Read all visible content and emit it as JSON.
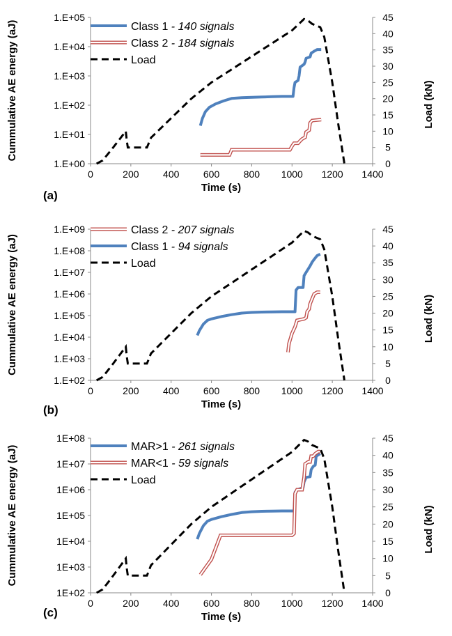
{
  "colors": {
    "blue": "#4f81bd",
    "red": "#c0504d",
    "load": "#000000"
  },
  "chart_data": [
    {
      "type": "line",
      "panel_label": "(a)",
      "xlabel": "Time (s)",
      "ylabel": "Cummulative AE energy (aJ)",
      "y2label": "Load (kN)",
      "xlim": [
        0,
        1400
      ],
      "xticks": [
        "0",
        "200",
        "400",
        "600",
        "800",
        "1000",
        "1200",
        "1400"
      ],
      "ylim": [
        1,
        100000
      ],
      "yscale": "log",
      "yticks": [
        "1.E+00",
        "1.E+01",
        "1.E+02",
        "1.E+03",
        "1.E+04",
        "1.E+05"
      ],
      "y2lim": [
        0,
        45
      ],
      "y2ticks": [
        "0",
        "5",
        "10",
        "15",
        "20",
        "25",
        "30",
        "35",
        "40",
        "45"
      ],
      "legend": [
        {
          "name": "Class 1",
          "note": " - 140 signals",
          "style": "blue"
        },
        {
          "name": "Class 2",
          "note": " - 184 signals",
          "style": "red"
        },
        {
          "name": "Load",
          "note": "",
          "style": "load"
        }
      ],
      "series": [
        {
          "name": "Class 1",
          "style": "blue",
          "axis": "left",
          "x": [
            545,
            555,
            570,
            590,
            620,
            660,
            700,
            750,
            800,
            850,
            900,
            950,
            1005,
            1010,
            1015,
            1030,
            1035,
            1040,
            1060,
            1065,
            1070,
            1090,
            1095,
            1110,
            1125,
            1145
          ],
          "y": [
            20,
            35,
            60,
            85,
            110,
            140,
            170,
            180,
            185,
            190,
            195,
            200,
            200,
            400,
            600,
            700,
            1000,
            2000,
            2500,
            3000,
            4000,
            4500,
            6000,
            7000,
            8000,
            8000
          ]
        },
        {
          "name": "Class 2",
          "style": "red",
          "axis": "left",
          "x": [
            545,
            690,
            700,
            990,
            1000,
            1010,
            1030,
            1040,
            1050,
            1065,
            1070,
            1085,
            1090,
            1100,
            1145
          ],
          "y": [
            2,
            2,
            3,
            3,
            4,
            5,
            5,
            6,
            7,
            8,
            12,
            14,
            25,
            30,
            32
          ]
        },
        {
          "name": "Load",
          "style": "load",
          "axis": "right",
          "x": [
            30,
            60,
            100,
            150,
            175,
            180,
            185,
            280,
            300,
            400,
            500,
            600,
            700,
            800,
            900,
            1000,
            1060,
            1080,
            1100,
            1140,
            1160,
            1200,
            1230,
            1260
          ],
          "y": [
            0,
            1,
            4,
            8,
            10,
            7,
            5,
            5,
            8,
            14,
            20,
            25,
            29,
            33,
            37,
            41,
            44.5,
            44,
            43,
            42,
            39,
            25,
            12,
            0
          ]
        }
      ]
    },
    {
      "type": "line",
      "panel_label": "(b)",
      "xlabel": "Time (s)",
      "ylabel": "Cummulative AE energy (aJ)",
      "y2label": "Load (kN)",
      "xlim": [
        0,
        1400
      ],
      "xticks": [
        "0",
        "200",
        "400",
        "600",
        "800",
        "1000",
        "1200",
        "1400"
      ],
      "ylim": [
        100,
        1000000000
      ],
      "yscale": "log",
      "yticks": [
        "1.E+02",
        "1.E+03",
        "1.E+04",
        "1.E+05",
        "1.E+06",
        "1.E+07",
        "1.E+08",
        "1.E+09"
      ],
      "y2lim": [
        0,
        45
      ],
      "y2ticks": [
        "0",
        "5",
        "10",
        "15",
        "20",
        "25",
        "30",
        "35",
        "40",
        "45"
      ],
      "legend": [
        {
          "name": "Class 2",
          "note": " - 207 signals",
          "style": "red"
        },
        {
          "name": "Class 1",
          "note": " - 94 signals",
          "style": "blue"
        },
        {
          "name": "Load",
          "note": "",
          "style": "load"
        }
      ],
      "series": [
        {
          "name": "Class 2",
          "style": "red",
          "axis": "left",
          "x": [
            980,
            985,
            1000,
            1015,
            1025,
            1060,
            1070,
            1075,
            1085,
            1090,
            1100,
            1110,
            1125,
            1140
          ],
          "y": [
            2000,
            5000,
            15000,
            30000,
            60000,
            70000,
            80000,
            150000,
            200000,
            350000,
            600000,
            1000000,
            1200000,
            1200000
          ]
        },
        {
          "name": "Class 1",
          "style": "blue",
          "axis": "left",
          "x": [
            530,
            540,
            560,
            580,
            600,
            650,
            700,
            750,
            800,
            850,
            900,
            950,
            1015,
            1020,
            1030,
            1055,
            1060,
            1070,
            1090,
            1100,
            1110,
            1125,
            1140
          ],
          "y": [
            12000,
            20000,
            40000,
            60000,
            70000,
            90000,
            110000,
            130000,
            140000,
            145000,
            148000,
            150000,
            150000,
            1500000,
            2000000,
            2000000,
            7000000,
            10000000,
            20000000,
            30000000,
            40000000,
            60000000,
            70000000
          ]
        },
        {
          "name": "Load",
          "style": "load",
          "axis": "right",
          "x": [
            30,
            60,
            100,
            150,
            175,
            180,
            185,
            280,
            300,
            400,
            500,
            600,
            700,
            800,
            900,
            1000,
            1060,
            1080,
            1100,
            1140,
            1160,
            1200,
            1230,
            1260
          ],
          "y": [
            0,
            1,
            4,
            8,
            10,
            7,
            5,
            5,
            8,
            14,
            20,
            25,
            29,
            33,
            37,
            41,
            44.5,
            44,
            43,
            42,
            39,
            25,
            12,
            0
          ]
        }
      ]
    },
    {
      "type": "line",
      "panel_label": "(c)",
      "xlabel": "Time (s)",
      "ylabel": "Cummulative AE energy (aJ)",
      "y2label": "Load (kN)",
      "xlim": [
        0,
        1400
      ],
      "xticks": [
        "0",
        "200",
        "400",
        "600",
        "800",
        "1000",
        "1200",
        "1400"
      ],
      "ylim": [
        100,
        100000000
      ],
      "yscale": "log",
      "yticks": [
        "1E+02",
        "1E+03",
        "1E+04",
        "1E+05",
        "1E+06",
        "1E+07",
        "1E+08"
      ],
      "y2lim": [
        0,
        45
      ],
      "y2ticks": [
        "0",
        "5",
        "10",
        "15",
        "20",
        "25",
        "30",
        "35",
        "40",
        "45"
      ],
      "legend": [
        {
          "name": "MAR>1",
          "note": " - 261 signals",
          "style": "blue"
        },
        {
          "name": "MAR<1",
          "note": " - 59 signals",
          "style": "red"
        },
        {
          "name": "Load",
          "note": "",
          "style": "load"
        }
      ],
      "series": [
        {
          "name": "MAR>1",
          "style": "blue",
          "axis": "left",
          "x": [
            530,
            540,
            560,
            580,
            600,
            650,
            700,
            750,
            800,
            850,
            900,
            950,
            1010,
            1015,
            1025,
            1055,
            1060,
            1070,
            1090,
            1095,
            1105,
            1115,
            1120,
            1140
          ],
          "y": [
            12000,
            20000,
            40000,
            60000,
            70000,
            90000,
            110000,
            130000,
            140000,
            145000,
            148000,
            150000,
            150000,
            800000,
            1000000,
            1200000,
            2000000,
            3000000,
            3200000,
            6000000,
            8000000,
            9000000,
            20000000,
            25000000
          ]
        },
        {
          "name": "MAR<1",
          "style": "red",
          "axis": "left",
          "x": [
            545,
            600,
            645,
            1000,
            1010,
            1015,
            1025,
            1050,
            1060,
            1065,
            1080,
            1090,
            1095,
            1105,
            1115,
            1130,
            1140
          ],
          "y": [
            500,
            2000,
            17000,
            17000,
            20000,
            700000,
            1000000,
            1000000,
            3000000,
            10000000,
            12000000,
            12000000,
            20000000,
            20000000,
            25000000,
            30000000,
            30000000
          ]
        },
        {
          "name": "Load",
          "style": "load",
          "axis": "right",
          "x": [
            30,
            60,
            100,
            150,
            175,
            180,
            185,
            280,
            300,
            400,
            500,
            600,
            700,
            800,
            900,
            1000,
            1060,
            1080,
            1100,
            1140,
            1160,
            1200,
            1230,
            1260
          ],
          "y": [
            0,
            1,
            4,
            8,
            10,
            7,
            5,
            5,
            8,
            14,
            20,
            25,
            29,
            33,
            37,
            41,
            44.5,
            44,
            43,
            42,
            39,
            25,
            12,
            0
          ]
        }
      ]
    }
  ]
}
